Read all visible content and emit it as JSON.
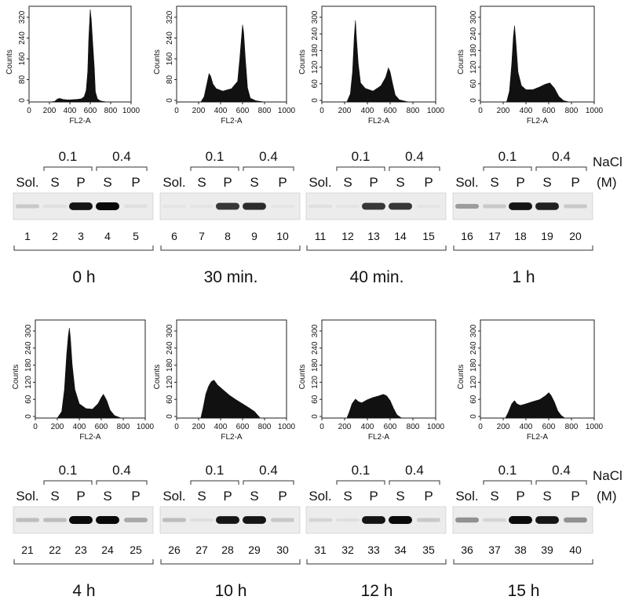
{
  "histograms": [
    {
      "id": "h0",
      "yticks": [
        "0",
        "80",
        "160",
        "240",
        "320"
      ],
      "xticks": [
        "0",
        "200",
        "400",
        "600",
        "800",
        "1000"
      ],
      "ylabel": "Counts",
      "xlabel": "FL2-A",
      "yMax": 360,
      "profile": [
        [
          0,
          0
        ],
        [
          200,
          0
        ],
        [
          250,
          2
        ],
        [
          280,
          12
        ],
        [
          300,
          14
        ],
        [
          330,
          10
        ],
        [
          380,
          8
        ],
        [
          430,
          9
        ],
        [
          470,
          10
        ],
        [
          510,
          12
        ],
        [
          540,
          20
        ],
        [
          560,
          45
        ],
        [
          575,
          120
        ],
        [
          585,
          240
        ],
        [
          595,
          320
        ],
        [
          600,
          360
        ],
        [
          610,
          320
        ],
        [
          625,
          220
        ],
        [
          640,
          130
        ],
        [
          650,
          40
        ],
        [
          670,
          12
        ],
        [
          700,
          4
        ],
        [
          760,
          0
        ],
        [
          1000,
          0
        ]
      ]
    },
    {
      "id": "h1",
      "yticks": [
        "0",
        "80",
        "160",
        "240",
        "320"
      ],
      "xticks": [
        "0",
        "200",
        "400",
        "600",
        "800",
        "1000"
      ],
      "ylabel": "Counts",
      "xlabel": "FL2-A",
      "yMax": 360,
      "profile": [
        [
          0,
          0
        ],
        [
          220,
          0
        ],
        [
          250,
          20
        ],
        [
          270,
          60
        ],
        [
          295,
          110
        ],
        [
          310,
          100
        ],
        [
          330,
          70
        ],
        [
          360,
          52
        ],
        [
          420,
          42
        ],
        [
          500,
          52
        ],
        [
          555,
          80
        ],
        [
          575,
          170
        ],
        [
          590,
          250
        ],
        [
          600,
          300
        ],
        [
          610,
          270
        ],
        [
          625,
          170
        ],
        [
          645,
          55
        ],
        [
          670,
          15
        ],
        [
          720,
          5
        ],
        [
          800,
          0
        ],
        [
          1000,
          0
        ]
      ]
    },
    {
      "id": "h2",
      "yticks": [
        "0",
        "60",
        "120",
        "180",
        "240",
        "300"
      ],
      "xticks": [
        "0",
        "200",
        "400",
        "600",
        "800",
        "1000"
      ],
      "ylabel": "Counts",
      "xlabel": "FL2-A",
      "yMax": 340,
      "profile": [
        [
          0,
          0
        ],
        [
          220,
          0
        ],
        [
          250,
          30
        ],
        [
          270,
          110
        ],
        [
          285,
          240
        ],
        [
          295,
          300
        ],
        [
          305,
          230
        ],
        [
          320,
          140
        ],
        [
          340,
          70
        ],
        [
          380,
          50
        ],
        [
          450,
          40
        ],
        [
          520,
          60
        ],
        [
          560,
          90
        ],
        [
          585,
          125
        ],
        [
          600,
          110
        ],
        [
          620,
          70
        ],
        [
          645,
          25
        ],
        [
          680,
          8
        ],
        [
          760,
          0
        ],
        [
          1000,
          0
        ]
      ]
    },
    {
      "id": "h3",
      "yticks": [
        "0",
        "60",
        "120",
        "180",
        "240",
        "300"
      ],
      "xticks": [
        "0",
        "200",
        "400",
        "600",
        "800",
        "1000"
      ],
      "ylabel": "Counts",
      "xlabel": "FL2-A",
      "yMax": 340,
      "profile": [
        [
          0,
          0
        ],
        [
          230,
          0
        ],
        [
          255,
          40
        ],
        [
          275,
          140
        ],
        [
          290,
          240
        ],
        [
          300,
          280
        ],
        [
          312,
          220
        ],
        [
          330,
          110
        ],
        [
          360,
          60
        ],
        [
          400,
          45
        ],
        [
          460,
          45
        ],
        [
          520,
          55
        ],
        [
          570,
          65
        ],
        [
          610,
          70
        ],
        [
          650,
          50
        ],
        [
          690,
          20
        ],
        [
          730,
          5
        ],
        [
          780,
          0
        ],
        [
          1000,
          0
        ]
      ]
    },
    {
      "id": "h4",
      "yticks": [
        "0",
        "60",
        "120",
        "180",
        "240",
        "300"
      ],
      "xticks": [
        "0",
        "200",
        "400",
        "600",
        "800",
        "1000"
      ],
      "ylabel": "Counts",
      "xlabel": "FL2-A",
      "yMax": 300,
      "profile": [
        [
          0,
          0
        ],
        [
          200,
          0
        ],
        [
          240,
          20
        ],
        [
          265,
          90
        ],
        [
          285,
          200
        ],
        [
          300,
          260
        ],
        [
          310,
          285
        ],
        [
          320,
          250
        ],
        [
          335,
          170
        ],
        [
          360,
          90
        ],
        [
          400,
          45
        ],
        [
          460,
          30
        ],
        [
          520,
          28
        ],
        [
          570,
          45
        ],
        [
          600,
          65
        ],
        [
          620,
          75
        ],
        [
          650,
          55
        ],
        [
          680,
          25
        ],
        [
          720,
          8
        ],
        [
          780,
          0
        ],
        [
          1000,
          0
        ]
      ]
    },
    {
      "id": "h5",
      "yticks": [
        "0",
        "60",
        "120",
        "180",
        "240",
        "300"
      ],
      "xticks": [
        "0",
        "200",
        "400",
        "600",
        "800",
        "1000"
      ],
      "ylabel": "Counts",
      "xlabel": "FL2-A",
      "yMax": 300,
      "profile": [
        [
          0,
          0
        ],
        [
          220,
          0
        ],
        [
          240,
          30
        ],
        [
          265,
          75
        ],
        [
          290,
          100
        ],
        [
          315,
          115
        ],
        [
          340,
          120
        ],
        [
          370,
          105
        ],
        [
          420,
          90
        ],
        [
          480,
          72
        ],
        [
          540,
          58
        ],
        [
          600,
          45
        ],
        [
          660,
          32
        ],
        [
          710,
          20
        ],
        [
          740,
          8
        ],
        [
          760,
          0
        ],
        [
          1000,
          0
        ]
      ]
    },
    {
      "id": "h6",
      "yticks": [
        "0",
        "60",
        "120",
        "180",
        "240",
        "300"
      ],
      "xticks": [
        "0",
        "200",
        "400",
        "600",
        "800",
        "1000"
      ],
      "ylabel": "Counts",
      "xlabel": "FL2-A",
      "yMax": 300,
      "profile": [
        [
          0,
          0
        ],
        [
          220,
          0
        ],
        [
          240,
          18
        ],
        [
          265,
          45
        ],
        [
          295,
          60
        ],
        [
          320,
          52
        ],
        [
          350,
          48
        ],
        [
          400,
          58
        ],
        [
          450,
          65
        ],
        [
          500,
          70
        ],
        [
          540,
          75
        ],
        [
          570,
          70
        ],
        [
          600,
          55
        ],
        [
          630,
          30
        ],
        [
          660,
          10
        ],
        [
          700,
          0
        ],
        [
          1000,
          0
        ]
      ]
    },
    {
      "id": "h7",
      "yticks": [
        "0",
        "60",
        "120",
        "180",
        "240",
        "300"
      ],
      "xticks": [
        "0",
        "200",
        "400",
        "600",
        "800",
        "1000"
      ],
      "ylabel": "Counts",
      "xlabel": "FL2-A",
      "yMax": 300,
      "profile": [
        [
          0,
          0
        ],
        [
          220,
          0
        ],
        [
          245,
          18
        ],
        [
          275,
          45
        ],
        [
          300,
          55
        ],
        [
          320,
          45
        ],
        [
          350,
          40
        ],
        [
          400,
          45
        ],
        [
          460,
          52
        ],
        [
          520,
          58
        ],
        [
          570,
          70
        ],
        [
          600,
          80
        ],
        [
          620,
          72
        ],
        [
          650,
          50
        ],
        [
          680,
          22
        ],
        [
          710,
          8
        ],
        [
          740,
          0
        ],
        [
          1000,
          0
        ]
      ]
    }
  ],
  "blots": [
    {
      "nacl_01": "0.1",
      "nacl_04": "0.4",
      "lanes": [
        "Sol.",
        "S",
        "P",
        "S",
        "P"
      ],
      "numbers": [
        "1",
        "2",
        "3",
        "4",
        "5"
      ],
      "bands": [
        0.15,
        0.05,
        0.95,
        1.0,
        0.05
      ],
      "time": "0 h"
    },
    {
      "nacl_01": "0.1",
      "nacl_04": "0.4",
      "lanes": [
        "Sol.",
        "S",
        "P",
        "S",
        "P"
      ],
      "numbers": [
        "6",
        "7",
        "8",
        "9",
        "10"
      ],
      "bands": [
        0.03,
        0.03,
        0.8,
        0.85,
        0.03
      ],
      "time": "30 min."
    },
    {
      "nacl_01": "0.1",
      "nacl_04": "0.4",
      "lanes": [
        "Sol.",
        "S",
        "P",
        "S",
        "P"
      ],
      "numbers": [
        "11",
        "12",
        "13",
        "14",
        "15"
      ],
      "bands": [
        0.05,
        0.03,
        0.8,
        0.8,
        0.03
      ],
      "time": "40 min."
    },
    {
      "nacl_01": "0.1",
      "nacl_04": "0.4",
      "lanes": [
        "Sol.",
        "S",
        "P",
        "S",
        "P"
      ],
      "numbers": [
        "16",
        "17",
        "18",
        "19",
        "20"
      ],
      "bands": [
        0.35,
        0.15,
        0.95,
        0.9,
        0.15
      ],
      "time": "1 h"
    },
    {
      "nacl_01": "0.1",
      "nacl_04": "0.4",
      "lanes": [
        "Sol.",
        "S",
        "P",
        "S",
        "P"
      ],
      "numbers": [
        "21",
        "22",
        "23",
        "24",
        "25"
      ],
      "bands": [
        0.2,
        0.2,
        1.0,
        1.0,
        0.3
      ],
      "time": "4 h"
    },
    {
      "nacl_01": "0.1",
      "nacl_04": "0.4",
      "lanes": [
        "Sol.",
        "S",
        "P",
        "S",
        "P"
      ],
      "numbers": [
        "26",
        "27",
        "28",
        "29",
        "30"
      ],
      "bands": [
        0.2,
        0.05,
        0.95,
        0.95,
        0.15
      ],
      "time": "10 h"
    },
    {
      "nacl_01": "0.1",
      "nacl_04": "0.4",
      "lanes": [
        "Sol.",
        "S",
        "P",
        "S",
        "P"
      ],
      "numbers": [
        "31",
        "32",
        "33",
        "34",
        "35"
      ],
      "bands": [
        0.1,
        0.05,
        0.95,
        1.0,
        0.15
      ],
      "time": "12 h"
    },
    {
      "nacl_01": "0.1",
      "nacl_04": "0.4",
      "lanes": [
        "Sol.",
        "S",
        "P",
        "S",
        "P"
      ],
      "numbers": [
        "36",
        "37",
        "38",
        "39",
        "40"
      ],
      "bands": [
        0.4,
        0.1,
        1.0,
        0.95,
        0.4
      ],
      "time": "15 h"
    }
  ],
  "nacl_label": "NaCl",
  "nacl_unit": "(M)"
}
